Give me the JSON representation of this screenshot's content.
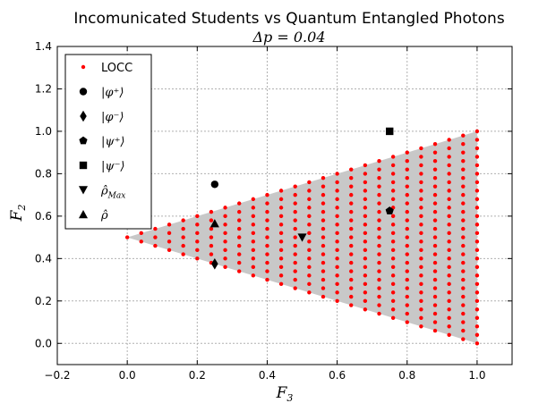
{
  "chart_data": {
    "type": "scatter",
    "title": "Incomunicated Students vs Quantum Entangled Photons",
    "subtitle": "Δp = 0.04",
    "xlabel": "F",
    "xlabel_sub": "3",
    "ylabel": "F",
    "ylabel_sub": "2",
    "xlim": [
      -0.2,
      1.1
    ],
    "ylim": [
      -0.1,
      1.4
    ],
    "xticks": [
      -0.2,
      0.0,
      0.2,
      0.4,
      0.6,
      0.8,
      1.0
    ],
    "xtick_labels": [
      "−0.2",
      "0.0",
      "0.2",
      "0.4",
      "0.6",
      "0.8",
      "1.0"
    ],
    "yticks": [
      0.0,
      0.2,
      0.4,
      0.6,
      0.8,
      1.0,
      1.2,
      1.4
    ],
    "ytick_labels": [
      "0.0",
      "0.2",
      "0.4",
      "0.6",
      "0.8",
      "1.0",
      "1.2",
      "1.4"
    ],
    "grid": true,
    "legend_position": "upper-left",
    "region": {
      "fill": "#c8c8c8",
      "vertices": [
        [
          0.0,
          0.5
        ],
        [
          1.0,
          1.0
        ],
        [
          1.0,
          0.0
        ]
      ]
    },
    "series": [
      {
        "name": "LOCC",
        "marker": "dot",
        "color": "#ff0000",
        "step": 0.04,
        "region": "triangle"
      },
      {
        "name": "|φ⁺⟩",
        "marker": "circle",
        "color": "#000000",
        "points": [
          [
            0.25,
            0.75
          ]
        ]
      },
      {
        "name": "|φ⁻⟩",
        "marker": "diamond",
        "color": "#000000",
        "points": [
          [
            0.25,
            0.375
          ]
        ]
      },
      {
        "name": "|ψ⁺⟩",
        "marker": "pentagon",
        "color": "#000000",
        "points": [
          [
            0.75,
            0.625
          ]
        ]
      },
      {
        "name": "|ψ⁻⟩",
        "marker": "square",
        "color": "#000000",
        "points": [
          [
            0.75,
            1.0
          ]
        ]
      },
      {
        "name": "ρ̂_Max",
        "marker": "triangle-down",
        "color": "#000000",
        "points": [
          [
            0.5,
            0.5
          ]
        ]
      },
      {
        "name": "ρ̂",
        "marker": "triangle-up",
        "color": "#000000",
        "points": [
          [
            0.25,
            0.565
          ]
        ]
      }
    ],
    "legend": [
      {
        "label": "LOCC",
        "marker": "dot",
        "color": "#ff0000",
        "math": false
      },
      {
        "label": "|φ⁺⟩",
        "marker": "circle",
        "color": "#000000",
        "math": true
      },
      {
        "label": "|φ⁻⟩",
        "marker": "diamond",
        "color": "#000000",
        "math": true
      },
      {
        "label": "|ψ⁺⟩",
        "marker": "pentagon",
        "color": "#000000",
        "math": true
      },
      {
        "label": "|ψ⁻⟩",
        "marker": "square",
        "color": "#000000",
        "math": true
      },
      {
        "label": "ρ̂",
        "label_sub": "Max",
        "marker": "triangle-down",
        "color": "#000000",
        "math": true
      },
      {
        "label": "ρ̂",
        "marker": "triangle-up",
        "color": "#000000",
        "math": true
      }
    ]
  }
}
